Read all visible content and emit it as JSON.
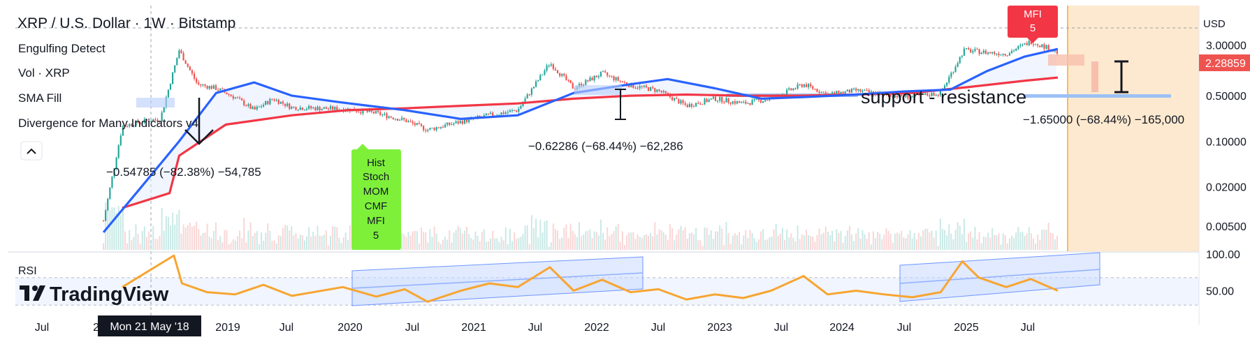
{
  "header": {
    "symbol_title": "XRP / U.S. Dollar · 1W · Bitstamp",
    "currency": "USD",
    "last_price": "2.28859"
  },
  "indicators": [
    {
      "label": "Engulfing Detect"
    },
    {
      "label": "Vol · XRP"
    },
    {
      "label": "SMA Fill"
    },
    {
      "label": "Divergence for Many Indicators v4"
    }
  ],
  "subpane": {
    "label": "RSI"
  },
  "watermark": "TradingView",
  "crosshair_date": "Mon 21 May '18",
  "annotations": {
    "measure_1": "−0.54785 (−82.38%) −54,785",
    "measure_2": "−0.62286 (−68.44%) −62,286",
    "measure_3": "−1.65000 (−68.44%) −165,000",
    "support_text": "support - resistance",
    "green_signal": [
      "Hist",
      "Stoch",
      "MOM",
      "CMF",
      "MFI",
      "5"
    ],
    "red_signal": [
      "MFI",
      "5"
    ]
  },
  "colors": {
    "price_up": "#26a69a",
    "price_down": "#ef5350",
    "sma_fast": "#2962ff",
    "sma_slow": "#f23645",
    "rsi_line": "#f7a531",
    "channel": "#4d88ff",
    "future_zone": "#fde9cf",
    "signal_green": "#7ef03a",
    "signal_red": "#f23645"
  },
  "chart_data": {
    "type": "line",
    "title": "XRP / U.S. Dollar · 1W · Bitstamp",
    "y_scale": "log",
    "x_tick_labels": [
      "Jul",
      "20",
      "2019",
      "Jul",
      "2020",
      "Jul",
      "2021",
      "Jul",
      "2022",
      "Jul",
      "2023",
      "Jul",
      "2024",
      "Jul",
      "2025",
      "Jul"
    ],
    "y_tick_labels": [
      "3.00000",
      "0.50000",
      "0.10000",
      "0.02000",
      "0.00500"
    ],
    "rsi_tick_labels": [
      "100.00",
      "50.00"
    ],
    "ylim": [
      0.0025,
      4.5
    ],
    "rsi_ylim": [
      20,
      100
    ],
    "series": [
      {
        "name": "XRP",
        "x": [
          "2017-05-01",
          "2017-07-01",
          "2017-09-01",
          "2017-11-01",
          "2018-01-01",
          "2018-03-01",
          "2018-05-01",
          "2018-07-01",
          "2018-09-01",
          "2018-11-01",
          "2019-01-01",
          "2019-04-01",
          "2019-07-01",
          "2019-10-01",
          "2020-01-01",
          "2020-03-15",
          "2020-07-01",
          "2020-10-01",
          "2021-01-01",
          "2021-04-15",
          "2021-07-01",
          "2021-10-01",
          "2022-01-01",
          "2022-04-01",
          "2022-07-01",
          "2022-10-01",
          "2023-01-01",
          "2023-04-01",
          "2023-07-15",
          "2023-10-01",
          "2024-01-01",
          "2024-04-01",
          "2024-07-01",
          "2024-10-01",
          "2024-12-15",
          "2025-03-01",
          "2025-05-01",
          "2025-07-20",
          "2025-09-01",
          "2025-10-15"
        ],
        "y": [
          0.006,
          0.17,
          0.2,
          0.22,
          2.5,
          0.75,
          0.65,
          0.47,
          0.3,
          0.45,
          0.33,
          0.32,
          0.31,
          0.27,
          0.21,
          0.15,
          0.2,
          0.25,
          0.3,
          1.6,
          0.65,
          1.1,
          0.72,
          0.6,
          0.35,
          0.45,
          0.38,
          0.45,
          0.75,
          0.52,
          0.6,
          0.52,
          0.48,
          0.55,
          2.5,
          2.3,
          2.2,
          3.4,
          2.85,
          2.29
        ]
      },
      {
        "name": "SMA fast",
        "x": [
          "2017-05-01",
          "2017-09-01",
          "2018-01-01",
          "2018-05-01",
          "2018-09-01",
          "2019-01-01",
          "2019-06-01",
          "2020-01-01",
          "2020-07-01",
          "2021-01-01",
          "2021-07-01",
          "2022-01-01",
          "2022-05-01",
          "2022-10-01",
          "2023-03-01",
          "2023-08-01",
          "2024-01-01",
          "2024-06-01",
          "2024-11-01",
          "2025-03-01",
          "2025-07-01",
          "2025-10-15"
        ],
        "y": [
          0.004,
          0.02,
          0.1,
          0.55,
          0.8,
          0.5,
          0.4,
          0.3,
          0.22,
          0.25,
          0.55,
          0.75,
          0.9,
          0.65,
          0.45,
          0.48,
          0.52,
          0.58,
          0.62,
          1.2,
          2.0,
          2.6
        ]
      },
      {
        "name": "SMA slow",
        "x": [
          "2017-07-01",
          "2017-12-01",
          "2018-01-01",
          "2018-06-01",
          "2019-01-01",
          "2019-07-01",
          "2020-01-01",
          "2020-07-01",
          "2021-01-01",
          "2021-07-01",
          "2022-01-01",
          "2022-07-01",
          "2023-01-01",
          "2023-07-01",
          "2024-01-01",
          "2024-07-01",
          "2025-01-01",
          "2025-07-01",
          "2025-10-15"
        ],
        "y": [
          0.0095,
          0.016,
          0.06,
          0.18,
          0.25,
          0.3,
          0.32,
          0.35,
          0.38,
          0.45,
          0.5,
          0.52,
          0.5,
          0.5,
          0.52,
          0.55,
          0.68,
          0.85,
          0.95
        ]
      },
      {
        "name": "RSI",
        "x": [
          "2017-07-01",
          "2017-12-15",
          "2018-01-10",
          "2018-04-01",
          "2018-07-01",
          "2018-10-01",
          "2019-01-01",
          "2019-06-15",
          "2019-10-01",
          "2020-01-01",
          "2020-03-15",
          "2020-07-01",
          "2020-10-01",
          "2021-01-01",
          "2021-04-15",
          "2021-07-01",
          "2021-10-01",
          "2022-01-01",
          "2022-04-01",
          "2022-07-01",
          "2022-10-01",
          "2023-01-01",
          "2023-04-01",
          "2023-07-15",
          "2023-10-01",
          "2024-01-01",
          "2024-04-01",
          "2024-07-01",
          "2024-10-01",
          "2024-12-10",
          "2025-02-01",
          "2025-05-01",
          "2025-07-20",
          "2025-09-01",
          "2025-10-15"
        ],
        "y": [
          55,
          98,
          60,
          48,
          45,
          58,
          43,
          55,
          42,
          52,
          35,
          50,
          60,
          55,
          82,
          50,
          65,
          48,
          52,
          38,
          45,
          40,
          50,
          70,
          45,
          50,
          45,
          41,
          48,
          90,
          68,
          55,
          66,
          58,
          50
        ]
      }
    ]
  }
}
